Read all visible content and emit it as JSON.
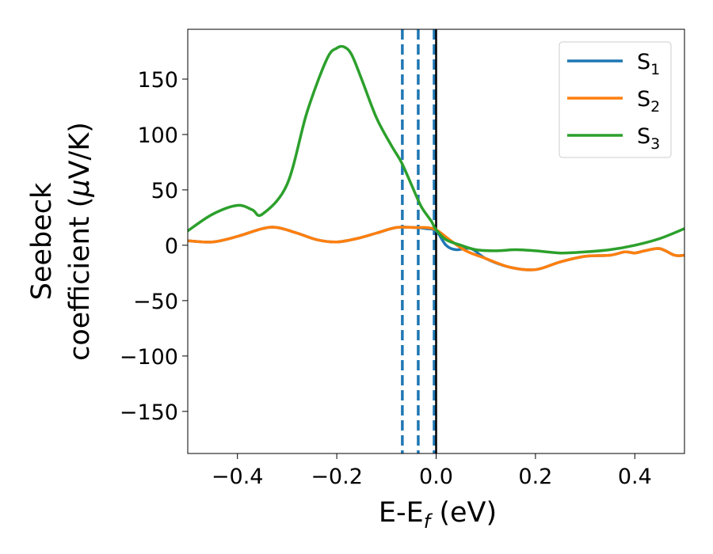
{
  "chart_data": {
    "type": "line",
    "xlabel": "E-E",
    "xlabel_sub": "f",
    "xlabel_unit": " (eV)",
    "ylabel_line1": "Seebeck",
    "ylabel_line2": "coefficient  (",
    "ylabel_mu": "μ",
    "ylabel_tail": "V/K)",
    "xlim": [
      -0.5,
      0.5
    ],
    "ylim": [
      -188,
      195
    ],
    "x_ticks": [
      -0.4,
      -0.2,
      0.0,
      0.2,
      0.4
    ],
    "x_tick_labels": [
      "−0.4",
      "−0.2",
      "0.0",
      "0.2",
      "0.4"
    ],
    "y_ticks": [
      -150,
      -100,
      -50,
      0,
      50,
      100,
      150
    ],
    "y_tick_labels": [
      "−150",
      "−100",
      "−50",
      "0",
      "50",
      "100",
      "150"
    ],
    "grid": false,
    "legend_position": "top-right",
    "series": [
      {
        "name": "S",
        "sub": "1",
        "color": "#1f77b4",
        "x": [
          -0.5,
          -0.45,
          -0.4,
          -0.35,
          -0.32,
          -0.28,
          -0.24,
          -0.2,
          -0.16,
          -0.12,
          -0.08,
          -0.04,
          -0.02,
          0.0,
          0.02,
          0.04,
          0.07,
          0.1,
          0.15,
          0.2,
          0.25,
          0.3,
          0.35,
          0.38,
          0.4,
          0.42,
          0.45,
          0.48,
          0.5
        ],
        "y": [
          4,
          3,
          8,
          15,
          16,
          11,
          5,
          3,
          6,
          11,
          16,
          16,
          15,
          13,
          0,
          -4,
          -3,
          -12,
          -20,
          -22,
          -15,
          -10,
          -9,
          -6,
          -7,
          -5,
          -3,
          -9,
          -9
        ]
      },
      {
        "name": "S",
        "sub": "2",
        "color": "#ff7f0e",
        "x": [
          -0.5,
          -0.45,
          -0.4,
          -0.35,
          -0.32,
          -0.28,
          -0.24,
          -0.2,
          -0.16,
          -0.12,
          -0.08,
          -0.04,
          -0.02,
          0.0,
          0.03,
          0.06,
          0.1,
          0.15,
          0.2,
          0.25,
          0.3,
          0.35,
          0.38,
          0.4,
          0.42,
          0.45,
          0.48,
          0.5
        ],
        "y": [
          4,
          3,
          8,
          15,
          16,
          11,
          5,
          3,
          6,
          11,
          16,
          16,
          16,
          14,
          4,
          -5,
          -12,
          -20,
          -22,
          -15,
          -10,
          -9,
          -6,
          -7,
          -5,
          -3,
          -9,
          -9
        ]
      },
      {
        "name": "S",
        "sub": "3",
        "color": "#2ca02c",
        "x": [
          -0.5,
          -0.45,
          -0.4,
          -0.37,
          -0.35,
          -0.3,
          -0.26,
          -0.22,
          -0.2,
          -0.185,
          -0.17,
          -0.15,
          -0.12,
          -0.09,
          -0.07,
          -0.05,
          -0.03,
          -0.01,
          0.0,
          0.02,
          0.05,
          0.08,
          0.12,
          0.16,
          0.2,
          0.25,
          0.3,
          0.35,
          0.4,
          0.45,
          0.5
        ],
        "y": [
          13,
          28,
          36,
          32,
          28,
          55,
          120,
          168,
          178,
          179,
          172,
          150,
          115,
          90,
          75,
          55,
          35,
          22,
          14,
          5,
          0,
          -4,
          -5,
          -4,
          -5,
          -7,
          -6,
          -4,
          0,
          6,
          15
        ]
      }
    ],
    "vertical_lines": [
      {
        "x": -0.068,
        "color": "#1f77b4",
        "style": "dashed"
      },
      {
        "x": -0.036,
        "color": "#1f77b4",
        "style": "dashed"
      },
      {
        "x": -0.004,
        "color": "#1f77b4",
        "style": "dashed"
      },
      {
        "x": 0.0,
        "color": "#000000",
        "style": "solid"
      }
    ]
  }
}
